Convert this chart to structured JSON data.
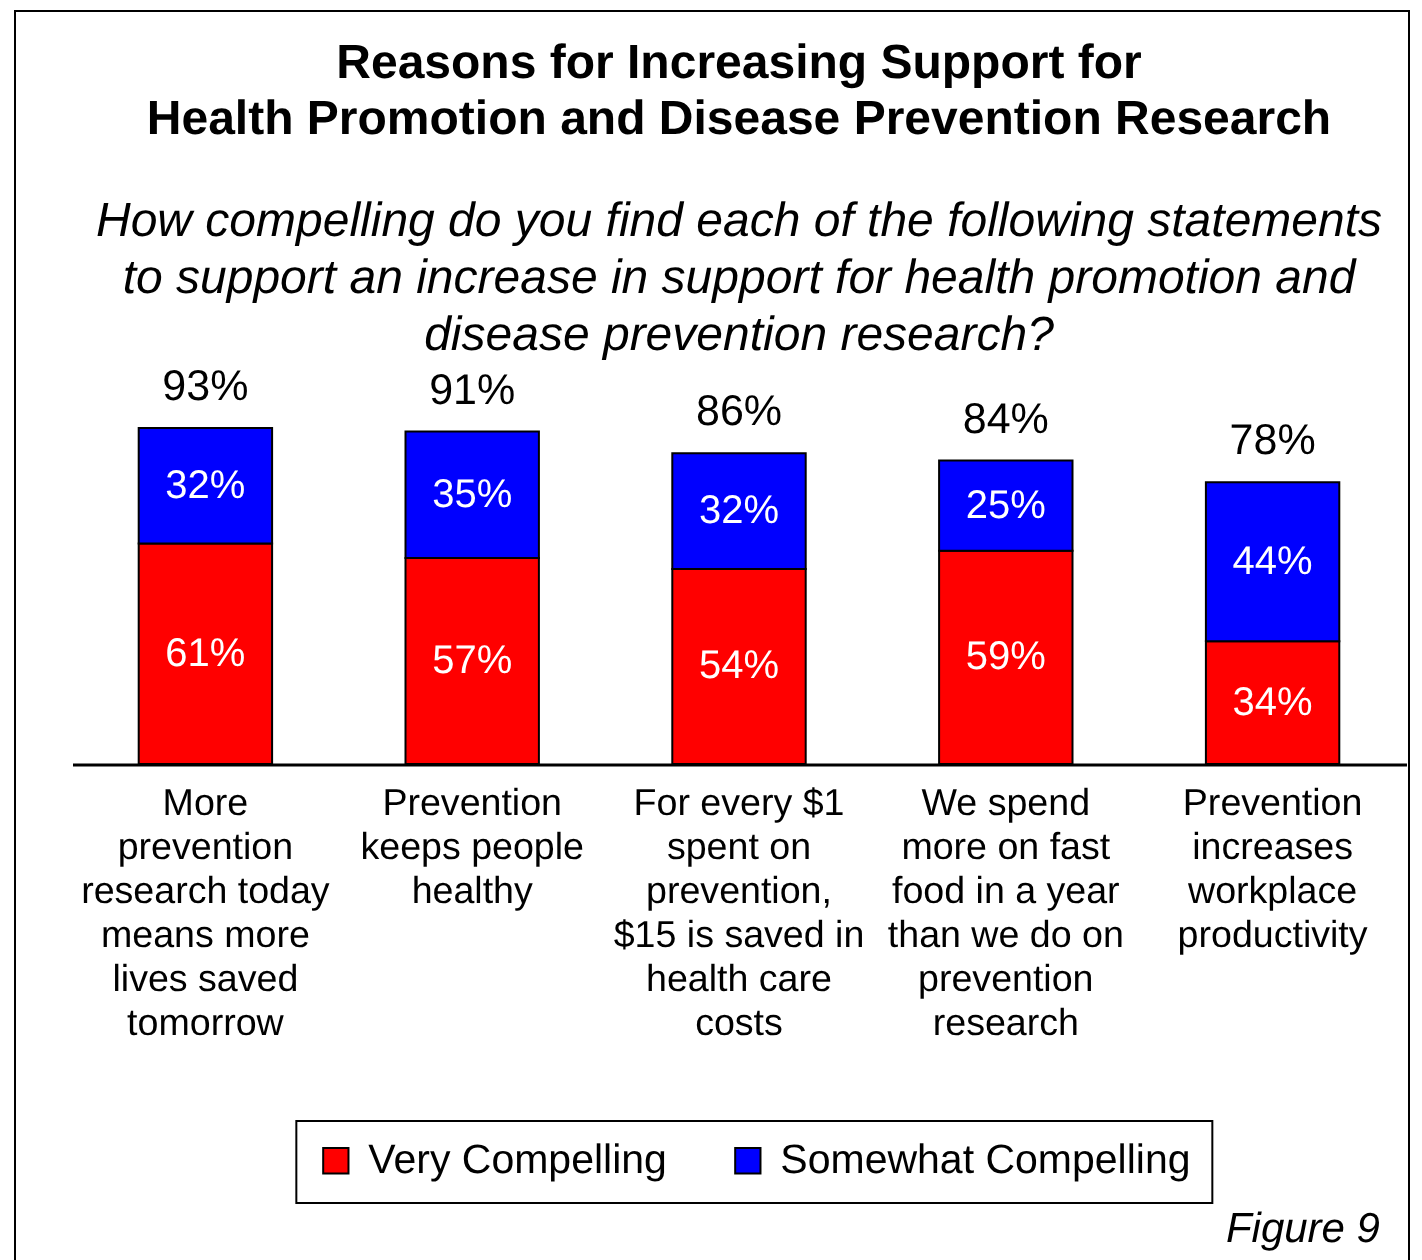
{
  "chart_data": {
    "type": "bar",
    "stacked": true,
    "title": "Reasons for Increasing Support for Health Promotion and Disease Prevention Research",
    "subtitle": "How compelling do you find each of the following statements to support an increase in support for health promotion and disease prevention research?",
    "categories": [
      "More prevention research today means more lives saved tomorrow",
      "Prevention keeps people healthy",
      "For every $1 spent on prevention, $15 is saved in health care costs",
      "We spend more on fast food in a year than we do on prevention research",
      "Prevention increases workplace productivity"
    ],
    "series": [
      {
        "name": "Very Compelling",
        "color": "#ff0000",
        "values": [
          61,
          57,
          54,
          59,
          34
        ],
        "value_labels": [
          "61%",
          "57%",
          "54%",
          "59%",
          "34%"
        ]
      },
      {
        "name": "Somewhat Compelling",
        "color": "#0000ff",
        "values": [
          32,
          35,
          32,
          25,
          44
        ],
        "value_labels": [
          "32%",
          "35%",
          "32%",
          "25%",
          "44%"
        ]
      }
    ],
    "totals": [
      "93%",
      "91%",
      "86%",
      "84%",
      "78%"
    ],
    "legend": "bottom",
    "annotations": [
      "Figure 9"
    ]
  }
}
